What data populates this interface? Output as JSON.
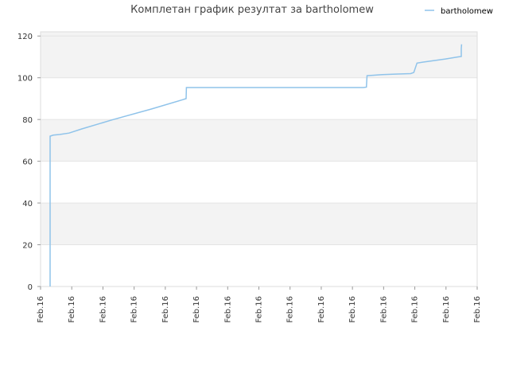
{
  "chart_data": {
    "type": "line",
    "title": "Комплетан график резултат за bartholomew",
    "xlabel": "",
    "ylabel": "",
    "ylim": [
      0,
      122
    ],
    "yticks": [
      0,
      20,
      40,
      60,
      80,
      100,
      120
    ],
    "xtick_labels": [
      "Feb.16",
      "Feb.16",
      "Feb.16",
      "Feb.16",
      "Feb.16",
      "Feb.16",
      "Feb.16",
      "Feb.16",
      "Feb.16",
      "Feb.16",
      "Feb.16",
      "Feb.16",
      "Feb.16",
      "Feb.16",
      "Feb.16"
    ],
    "grid": "horizontal bands",
    "legend_position": "top-right",
    "series_color": "#8fc3ea",
    "band_color": "#f3f3f3",
    "series": [
      {
        "name": "bartholomew",
        "points": [
          [
            0.0,
            0
          ],
          [
            0.0,
            72
          ],
          [
            0.01,
            72.5
          ],
          [
            0.03,
            72.8
          ],
          [
            0.06,
            73.5
          ],
          [
            0.1,
            75.5
          ],
          [
            0.2,
            80
          ],
          [
            0.32,
            85
          ],
          [
            0.42,
            89.5
          ],
          [
            0.43,
            90
          ],
          [
            0.431,
            95.3
          ],
          [
            0.6,
            95.3
          ],
          [
            0.8,
            95.3
          ],
          [
            0.99,
            95.3
          ],
          [
            1.0,
            95.5
          ],
          [
            1.002,
            101
          ],
          [
            1.02,
            101.2
          ],
          [
            1.05,
            101.5
          ],
          [
            1.1,
            101.8
          ],
          [
            1.14,
            102
          ],
          [
            1.15,
            102.5
          ],
          [
            1.16,
            107
          ],
          [
            1.18,
            107.5
          ],
          [
            1.25,
            109
          ],
          [
            1.29,
            110
          ],
          [
            1.3,
            110.2
          ],
          [
            1.3,
            114
          ],
          [
            1.301,
            116
          ]
        ]
      }
    ]
  }
}
